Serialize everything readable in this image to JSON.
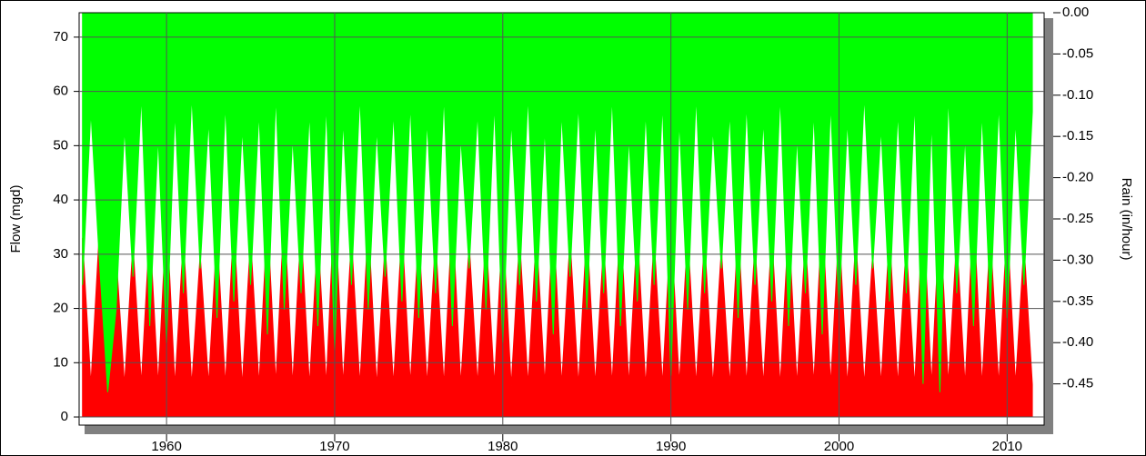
{
  "chart_data": {
    "type": "area",
    "y_label": "Flow (mgd)",
    "y2_label": "Rain (in/hour)",
    "x": [
      1955,
      1955.5,
      1956,
      1956.5,
      1957,
      1957.5,
      1958,
      1958.5,
      1959,
      1959.5,
      1960,
      1960.5,
      1961,
      1961.5,
      1962,
      1962.5,
      1963,
      1963.5,
      1964,
      1964.5,
      1965,
      1965.5,
      1966,
      1966.5,
      1967,
      1967.5,
      1968,
      1968.5,
      1969,
      1969.5,
      1970,
      1970.5,
      1971,
      1971.5,
      1972,
      1972.5,
      1973,
      1973.5,
      1974,
      1974.5,
      1975,
      1975.5,
      1976,
      1976.5,
      1977,
      1977.5,
      1978,
      1978.5,
      1979,
      1979.5,
      1980,
      1980.5,
      1981,
      1981.5,
      1982,
      1982.5,
      1983,
      1983.5,
      1984,
      1984.5,
      1985,
      1985.5,
      1986,
      1986.5,
      1987,
      1987.5,
      1988,
      1988.5,
      1989,
      1989.5,
      1990,
      1990.5,
      1991,
      1991.5,
      1992,
      1992.5,
      1993,
      1993.5,
      1994,
      1994.5,
      1995,
      1995.5,
      1996,
      1996.5,
      1997,
      1997.5,
      1998,
      1998.5,
      1999,
      1999.5,
      2000,
      2000.5,
      2001,
      2001.5,
      2002,
      2002.5,
      2003,
      2003.5,
      2004,
      2004.5,
      2005,
      2005.5,
      2006,
      2006.5,
      2007,
      2007.5,
      2008,
      2008.5,
      2009,
      2009.5,
      2010,
      2010.5,
      2011,
      2011.5
    ],
    "series": [
      {
        "color": "#ff0000",
        "values": [
          33,
          6,
          34,
          5.8,
          30,
          6,
          32,
          6.2,
          35,
          6,
          38,
          5.9,
          33,
          6,
          30,
          6.1,
          34,
          6,
          36,
          5.8,
          33,
          6,
          37,
          6.2,
          38,
          6,
          35,
          5.9,
          34,
          6,
          41,
          6.1,
          33,
          6,
          36,
          5.8,
          32,
          6,
          35,
          6.2,
          34,
          6,
          33,
          5.9,
          38,
          6,
          32,
          6.1,
          34,
          6,
          36,
          5.8,
          33,
          6,
          34,
          6.2,
          37,
          6,
          33,
          5.9,
          35,
          6,
          32,
          6.1,
          37,
          6,
          35,
          5.8,
          33,
          6,
          36,
          6.2,
          34,
          6,
          33,
          5.9,
          31,
          6,
          35,
          6.1,
          32,
          6,
          34,
          5.8,
          36,
          6,
          33,
          6.2,
          38,
          6,
          35,
          5.9,
          33,
          6,
          30,
          6.1,
          34,
          6,
          32,
          5.8,
          39,
          6,
          38,
          6.2,
          33,
          6,
          39,
          5.9,
          34,
          6,
          36,
          6.1,
          32,
          6
        ]
      },
      {
        "color": "#00ff00",
        "axis": "y2",
        "values": [
          -0.33,
          -0.12,
          -0.3,
          -0.46,
          -0.36,
          -0.14,
          -0.32,
          -0.1,
          -0.38,
          -0.15,
          -0.4,
          -0.12,
          -0.34,
          -0.1,
          -0.31,
          -0.13,
          -0.37,
          -0.11,
          -0.35,
          -0.14,
          -0.33,
          -0.12,
          -0.39,
          -0.1,
          -0.36,
          -0.15,
          -0.34,
          -0.12,
          -0.38,
          -0.11,
          -0.41,
          -0.13,
          -0.33,
          -0.1,
          -0.36,
          -0.14,
          -0.32,
          -0.12,
          -0.35,
          -0.11,
          -0.37,
          -0.13,
          -0.34,
          -0.1,
          -0.38,
          -0.15,
          -0.31,
          -0.12,
          -0.36,
          -0.11,
          -0.4,
          -0.13,
          -0.33,
          -0.1,
          -0.35,
          -0.14,
          -0.39,
          -0.12,
          -0.32,
          -0.11,
          -0.36,
          -0.13,
          -0.34,
          -0.1,
          -0.38,
          -0.15,
          -0.35,
          -0.12,
          -0.33,
          -0.11,
          -0.44,
          -0.13,
          -0.36,
          -0.1,
          -0.34,
          -0.14,
          -0.31,
          -0.12,
          -0.37,
          -0.11,
          -0.33,
          -0.13,
          -0.35,
          -0.1,
          -0.38,
          -0.15,
          -0.34,
          -0.12,
          -0.39,
          -0.11,
          -0.36,
          -0.13,
          -0.33,
          -0.1,
          -0.31,
          -0.14,
          -0.35,
          -0.12,
          -0.34,
          -0.11,
          -0.45,
          -0.13,
          -0.46,
          -0.1,
          -0.34,
          -0.15,
          -0.38,
          -0.12,
          -0.36,
          -0.11,
          -0.37,
          -0.13,
          -0.33,
          -0.12
        ]
      }
    ],
    "xlim": [
      1954.8,
      2012.2
    ],
    "xticks": [
      1960,
      1970,
      1980,
      1990,
      2000,
      2010
    ],
    "ylim": [
      -1.5,
      74.5
    ],
    "yticks": [
      0,
      10,
      20,
      30,
      40,
      50,
      60,
      70
    ],
    "y2lim": [
      -0.5,
      0
    ],
    "y2ticks": [
      {
        "value": 0,
        "label": "0.00"
      },
      -0.05,
      {
        "value": -0.1,
        "label": "-0.10"
      },
      -0.15,
      {
        "value": -0.2,
        "label": "-0.20"
      },
      -0.25,
      {
        "value": -0.3,
        "label": "-0.30"
      },
      -0.35,
      {
        "value": -0.4,
        "label": "-0.40"
      },
      -0.45
    ],
    "grid": true
  }
}
